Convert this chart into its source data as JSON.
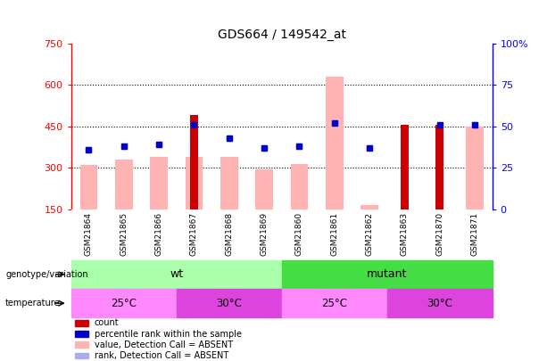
{
  "title": "GDS664 / 149542_at",
  "samples": [
    "GSM21864",
    "GSM21865",
    "GSM21866",
    "GSM21867",
    "GSM21868",
    "GSM21869",
    "GSM21860",
    "GSM21861",
    "GSM21862",
    "GSM21863",
    "GSM21870",
    "GSM21871"
  ],
  "count_values": [
    null,
    null,
    null,
    490,
    null,
    null,
    null,
    null,
    null,
    455,
    455,
    null
  ],
  "absent_value_heights": [
    310,
    330,
    340,
    340,
    340,
    295,
    315,
    630,
    165,
    null,
    null,
    450
  ],
  "percentile_rank": [
    36,
    38,
    39,
    51,
    43,
    37,
    38,
    52,
    37,
    null,
    51,
    51
  ],
  "rank_absent": [
    36,
    38,
    39,
    null,
    43,
    37,
    38,
    52,
    37,
    null,
    null,
    51
  ],
  "ylim_left": [
    150,
    750
  ],
  "ylim_right": [
    0,
    100
  ],
  "yticks_left": [
    150,
    300,
    450,
    600,
    750
  ],
  "yticks_right": [
    0,
    25,
    50,
    75,
    100
  ],
  "grid_values": [
    300,
    450,
    600
  ],
  "count_color": "#cc0000",
  "absent_value_color": "#ffb3b3",
  "percentile_color": "#0000cc",
  "rank_absent_color": "#aaaaee",
  "bg_plot": "#ffffff",
  "bg_xticklabel": "#d3d3d3",
  "genotype_wt_color": "#aaffaa",
  "genotype_mutant_color": "#44dd44",
  "temperature_25_color": "#ff88ff",
  "temperature_30_color": "#dd44dd",
  "legend_items": [
    [
      "#cc0000",
      "count"
    ],
    [
      "#0000cc",
      "percentile rank within the sample"
    ],
    [
      "#ffb3b3",
      "value, Detection Call = ABSENT"
    ],
    [
      "#aaaaee",
      "rank, Detection Call = ABSENT"
    ]
  ]
}
